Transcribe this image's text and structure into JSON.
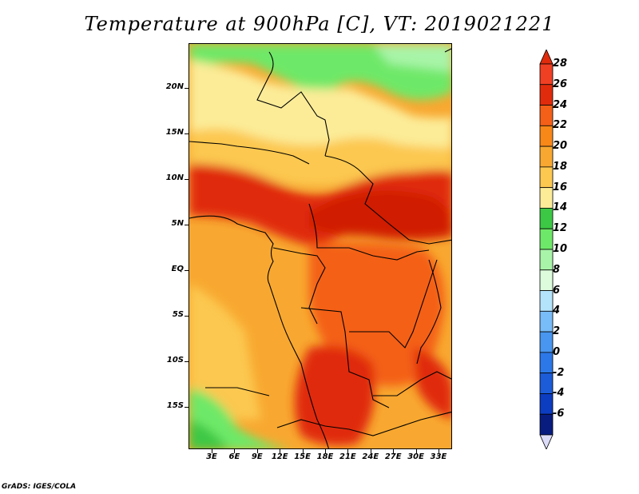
{
  "title": "Temperature at 900hPa [C], VT: 2019021221",
  "y_axis_labels": [
    "20N",
    "15N",
    "10N",
    "5N",
    "EQ",
    "5S",
    "10S",
    "15S"
  ],
  "x_axis_labels": [
    "3E",
    "6E",
    "9E",
    "12E",
    "15E",
    "18E",
    "21E",
    "24E",
    "27E",
    "30E",
    "33E"
  ],
  "colorbar": {
    "labels": [
      "28",
      "26",
      "24",
      "22",
      "20",
      "18",
      "16",
      "14",
      "12",
      "10",
      "8",
      "6",
      "4",
      "2",
      "0",
      "-2",
      "-4",
      "-6"
    ],
    "colors": [
      "#f04024",
      "#e02c0c",
      "#f46018",
      "#f88818",
      "#f8a830",
      "#fcc850",
      "#fcec98",
      "#3cc844",
      "#6ee868",
      "#a8f4a8",
      "#dcfcdc",
      "#b4e4fc",
      "#78bcf8",
      "#4896f0",
      "#2c78e8",
      "#1c5cd8",
      "#0c3cc0",
      "#081c80"
    ],
    "top_triangle": "#e02c0c",
    "bottom_triangle": "#dcdcf8"
  },
  "credit": "GrADS: IGES/COLA"
}
